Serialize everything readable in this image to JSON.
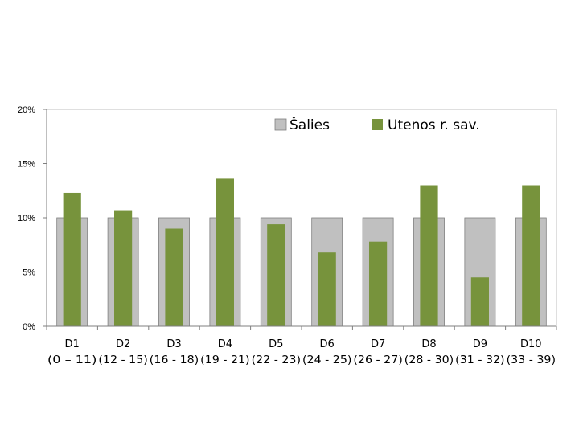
{
  "chart_data": {
    "type": "bar",
    "categories": [
      "D1",
      "D2",
      "D3",
      "D4",
      "D5",
      "D6",
      "D7",
      "D8",
      "D9",
      "D10"
    ],
    "category_ranges": [
      "(0 – 11)",
      "(12 - 15)",
      "(16 - 18)",
      "(19 - 21)",
      "(22 - 23)",
      "(24 - 25)",
      "(26 - 27)",
      "(28 - 30)",
      "(31 - 32)",
      "(33 - 39)"
    ],
    "series": [
      {
        "name": "Šalies",
        "values": [
          10,
          10,
          10,
          10,
          10,
          10,
          10,
          10,
          10,
          10
        ],
        "color": "#c0c0c0"
      },
      {
        "name": "Utenos r. sav.",
        "values": [
          12.3,
          10.7,
          9.0,
          13.6,
          9.4,
          6.8,
          7.8,
          13.0,
          4.5,
          13.0
        ],
        "color": "#77933c"
      }
    ],
    "y_ticks": [
      "0%",
      "5%",
      "10%",
      "15%",
      "20%"
    ],
    "ylim": [
      0,
      20
    ],
    "grid": false,
    "legend_position": "top-right"
  }
}
